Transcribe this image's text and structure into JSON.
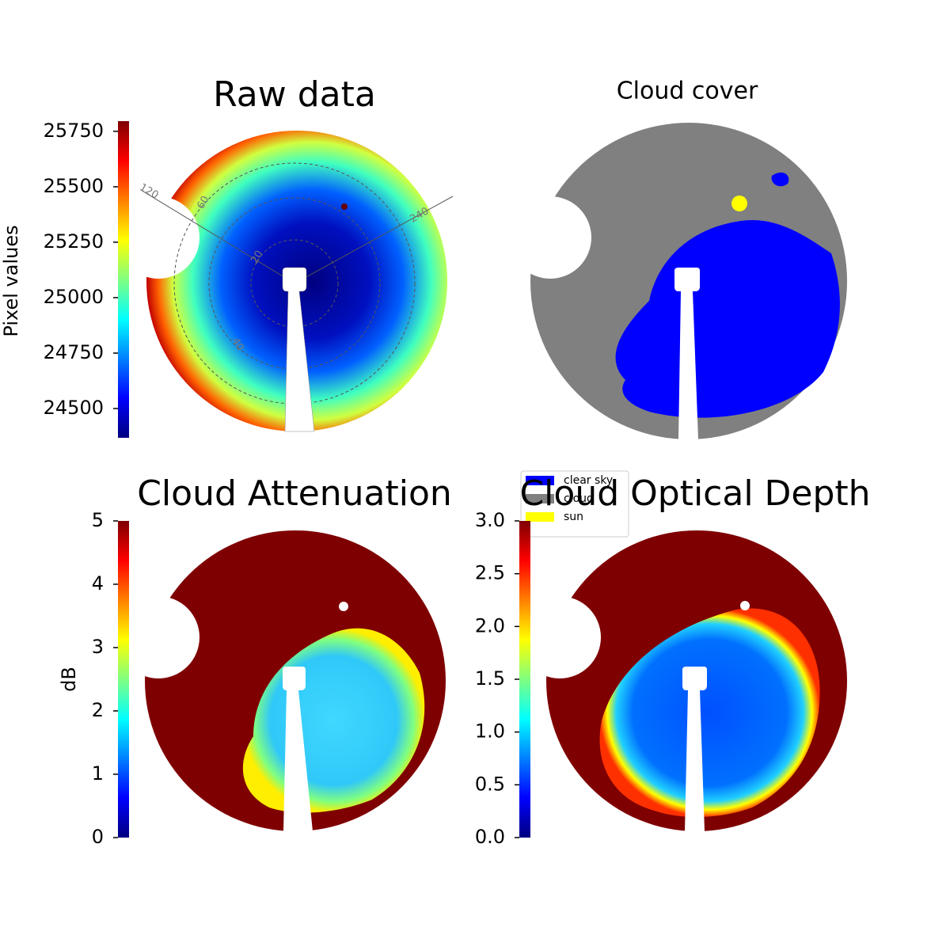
{
  "chart_data": [
    {
      "type": "image",
      "title": "Raw data",
      "colorbar_label": "Pixel values",
      "ylim": [
        24368,
        25796
      ],
      "yticks": [
        24500,
        24750,
        25000,
        25250,
        25500,
        25750
      ],
      "colormap": [
        "#00007f",
        "#0000ff",
        "#0080ff",
        "#00ffff",
        "#80ff80",
        "#ffff00",
        "#ff8000",
        "#ff0000",
        "#7f0000"
      ],
      "annotations": [
        "120",
        "60",
        "20",
        "40",
        "240"
      ]
    },
    {
      "type": "categorical_image",
      "title": "Cloud cover",
      "legend": [
        {
          "name": "clear sky",
          "color": "#0000ff"
        },
        {
          "name": "cloud",
          "color": "#808080"
        },
        {
          "name": "sun",
          "color": "#ffff00"
        }
      ]
    },
    {
      "type": "image",
      "title": "Cloud Attenuation",
      "colorbar_label": "dB",
      "ylim": [
        0,
        5
      ],
      "yticks": [
        0,
        1,
        2,
        3,
        4,
        5
      ],
      "colormap": [
        "#00007f",
        "#0000ff",
        "#0080ff",
        "#00ffff",
        "#80ff80",
        "#ffff00",
        "#ff8000",
        "#ff0000",
        "#7f0000"
      ]
    },
    {
      "type": "image",
      "title": "Cloud Optical Depth",
      "ylim": [
        0,
        3
      ],
      "yticks": [
        {
          "value": 0,
          "label": "0.0"
        },
        0.5,
        {
          "value": 1,
          "label": "1.0"
        },
        1.5,
        {
          "value": 2,
          "label": "2.0"
        },
        2.5,
        {
          "value": 3,
          "label": "3.0"
        }
      ],
      "colormap": [
        "#00007f",
        "#0000ff",
        "#0080ff",
        "#00ffff",
        "#80ff80",
        "#ffff00",
        "#ff8000",
        "#ff0000",
        "#7f0000"
      ]
    }
  ]
}
